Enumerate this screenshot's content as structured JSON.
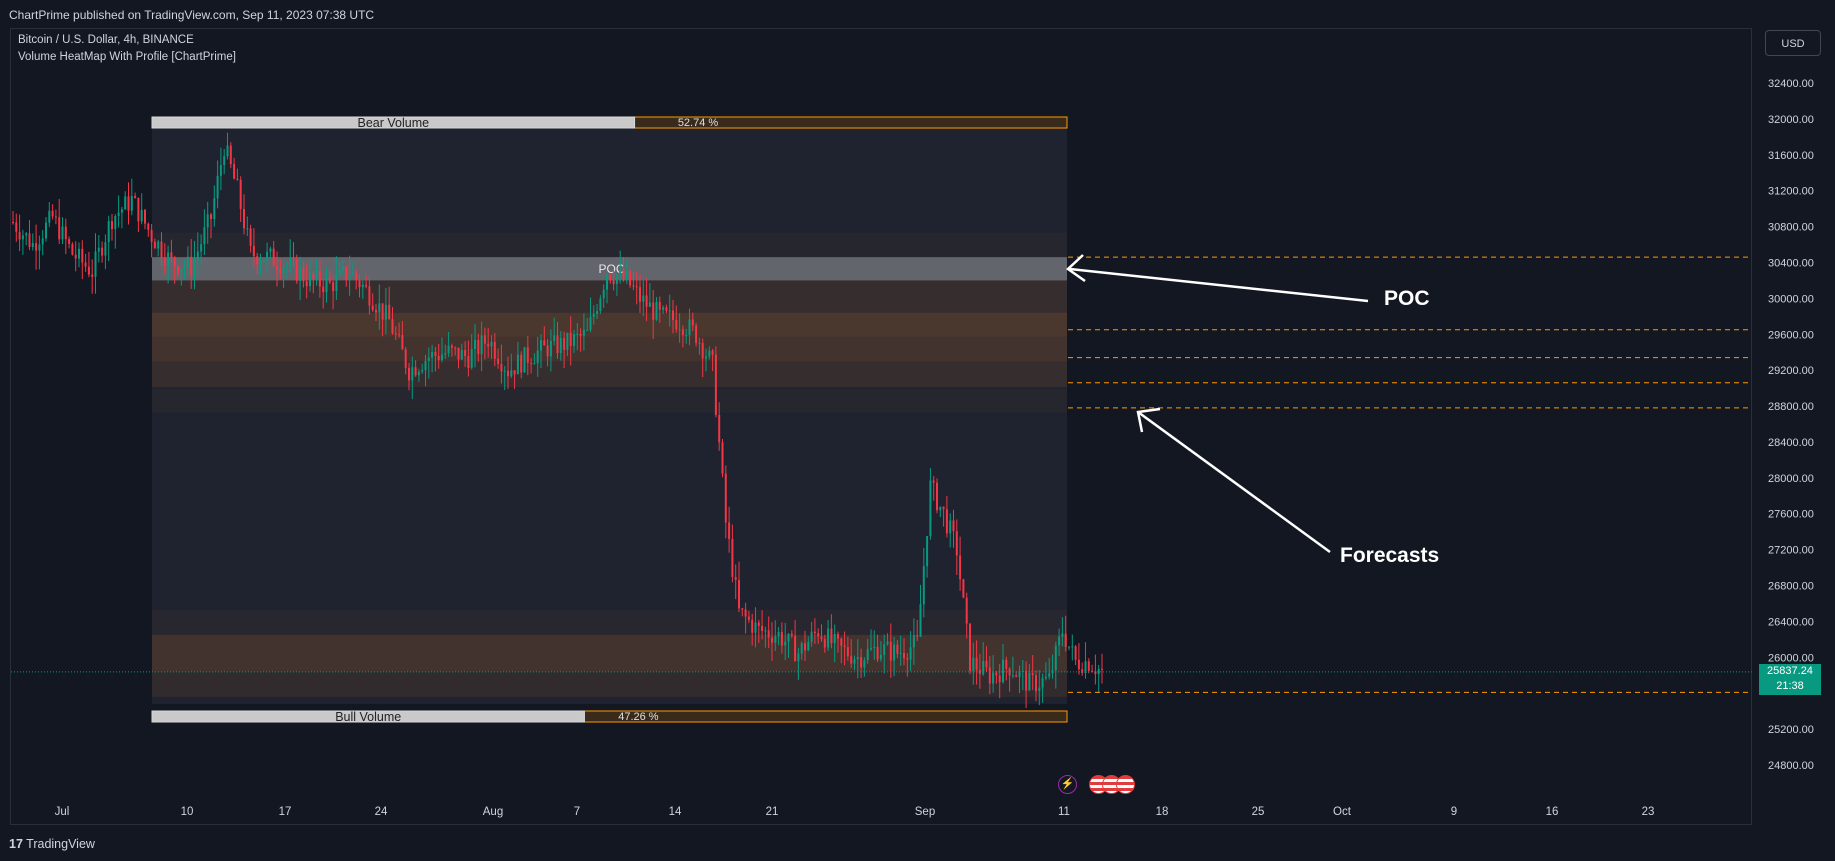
{
  "header": {
    "published": "ChartPrime published on TradingView.com, Sep 11, 2023 07:38 UTC"
  },
  "legend": {
    "symbol": "Bitcoin / U.S. Dollar, 4h, BINANCE",
    "indicator": "Volume HeatMap With Profile [ChartPrime]"
  },
  "currency_button": "USD",
  "footer": {
    "brand": "TradingView",
    "logo_mark": "17"
  },
  "price_tag": {
    "price": "25837.24",
    "countdown": "21:38"
  },
  "annotations": {
    "poc_callout": "POC",
    "forecast_callout": "Forecasts"
  },
  "colors": {
    "up": "#089981",
    "down": "#f23645",
    "bear_border": "#ff9800",
    "dashed": "#ff9800",
    "annotation": "#ffffff"
  },
  "icons": {
    "events": [
      "lightning-event-icon",
      "us-flag-icon",
      "us-flag-icon",
      "us-flag-icon"
    ]
  },
  "chart_data": {
    "type": "candlestick",
    "symbol": "Bitcoin / U.S. Dollar",
    "timeframe": "4h",
    "y_ticks": [
      "32400.00",
      "32000.00",
      "31600.00",
      "31200.00",
      "30800.00",
      "30400.00",
      "30000.00",
      "29600.00",
      "29200.00",
      "28800.00",
      "28400.00",
      "28000.00",
      "27600.00",
      "27200.00",
      "26800.00",
      "26400.00",
      "26000.00",
      "25600.00",
      "25200.00",
      "24800.00"
    ],
    "x_ticks": [
      "Jul",
      "10",
      "17",
      "24",
      "Aug",
      "7",
      "14",
      "21",
      "Sep",
      "11",
      "18",
      "25",
      "Oct",
      "9",
      "16",
      "23"
    ],
    "ylim": [
      24700,
      32600
    ],
    "last_price": 25837.24,
    "price_path": [
      [
        0,
        30850
      ],
      [
        6,
        30600
      ],
      [
        12,
        30900
      ],
      [
        18,
        30500
      ],
      [
        24,
        30300
      ],
      [
        30,
        30900
      ],
      [
        36,
        31100
      ],
      [
        42,
        30700
      ],
      [
        48,
        30400
      ],
      [
        54,
        30350
      ],
      [
        60,
        30900
      ],
      [
        64,
        31700
      ],
      [
        68,
        31200
      ],
      [
        72,
        30500
      ],
      [
        78,
        30450
      ],
      [
        84,
        30350
      ],
      [
        90,
        30200
      ],
      [
        96,
        30150
      ],
      [
        102,
        30300
      ],
      [
        108,
        30050
      ],
      [
        114,
        29750
      ],
      [
        120,
        29200
      ],
      [
        126,
        29350
      ],
      [
        132,
        29400
      ],
      [
        138,
        29350
      ],
      [
        144,
        29550
      ],
      [
        150,
        29200
      ],
      [
        156,
        29350
      ],
      [
        162,
        29450
      ],
      [
        168,
        29500
      ],
      [
        174,
        29600
      ],
      [
        180,
        30300
      ],
      [
        186,
        30200
      ],
      [
        190,
        30000
      ],
      [
        196,
        29800
      ],
      [
        202,
        29750
      ],
      [
        207,
        29600
      ],
      [
        212,
        29250
      ],
      [
        216,
        27500
      ],
      [
        220,
        26500
      ],
      [
        226,
        26300
      ],
      [
        232,
        26250
      ],
      [
        238,
        26050
      ],
      [
        244,
        26300
      ],
      [
        250,
        26100
      ],
      [
        256,
        26000
      ],
      [
        262,
        26100
      ],
      [
        268,
        26050
      ],
      [
        274,
        26150
      ],
      [
        278,
        27900
      ],
      [
        282,
        27600
      ],
      [
        286,
        27200
      ],
      [
        290,
        25950
      ],
      [
        296,
        25800
      ],
      [
        302,
        25900
      ],
      [
        308,
        25700
      ],
      [
        314,
        25750
      ],
      [
        318,
        26300
      ],
      [
        322,
        25950
      ],
      [
        326,
        25950
      ],
      [
        330,
        25840
      ]
    ],
    "volume_profile": {
      "bear_label": "Bear Volume",
      "bear_pct": "52.74 %",
      "bull_label": "Bull Volume",
      "bull_pct": "47.26 %",
      "poc_label": "POC",
      "poc_range": [
        30200,
        30460
      ],
      "heat_levels": [
        {
          "from": 25560,
          "to": 25840,
          "heat": 0.25
        },
        {
          "from": 25840,
          "to": 26250,
          "heat": 0.45
        },
        {
          "from": 26250,
          "to": 26530,
          "heat": 0.12
        },
        {
          "from": 28730,
          "to": 28990,
          "heat": 0.1
        },
        {
          "from": 29010,
          "to": 29300,
          "heat": 0.3
        },
        {
          "from": 29300,
          "to": 29570,
          "heat": 0.45
        },
        {
          "from": 29570,
          "to": 29840,
          "heat": 0.55
        },
        {
          "from": 29840,
          "to": 30200,
          "heat": 0.3
        },
        {
          "from": 30460,
          "to": 30730,
          "heat": 0.1
        }
      ]
    },
    "forecast_levels": [
      30460,
      29650,
      29340,
      29060,
      28780,
      25610
    ]
  }
}
